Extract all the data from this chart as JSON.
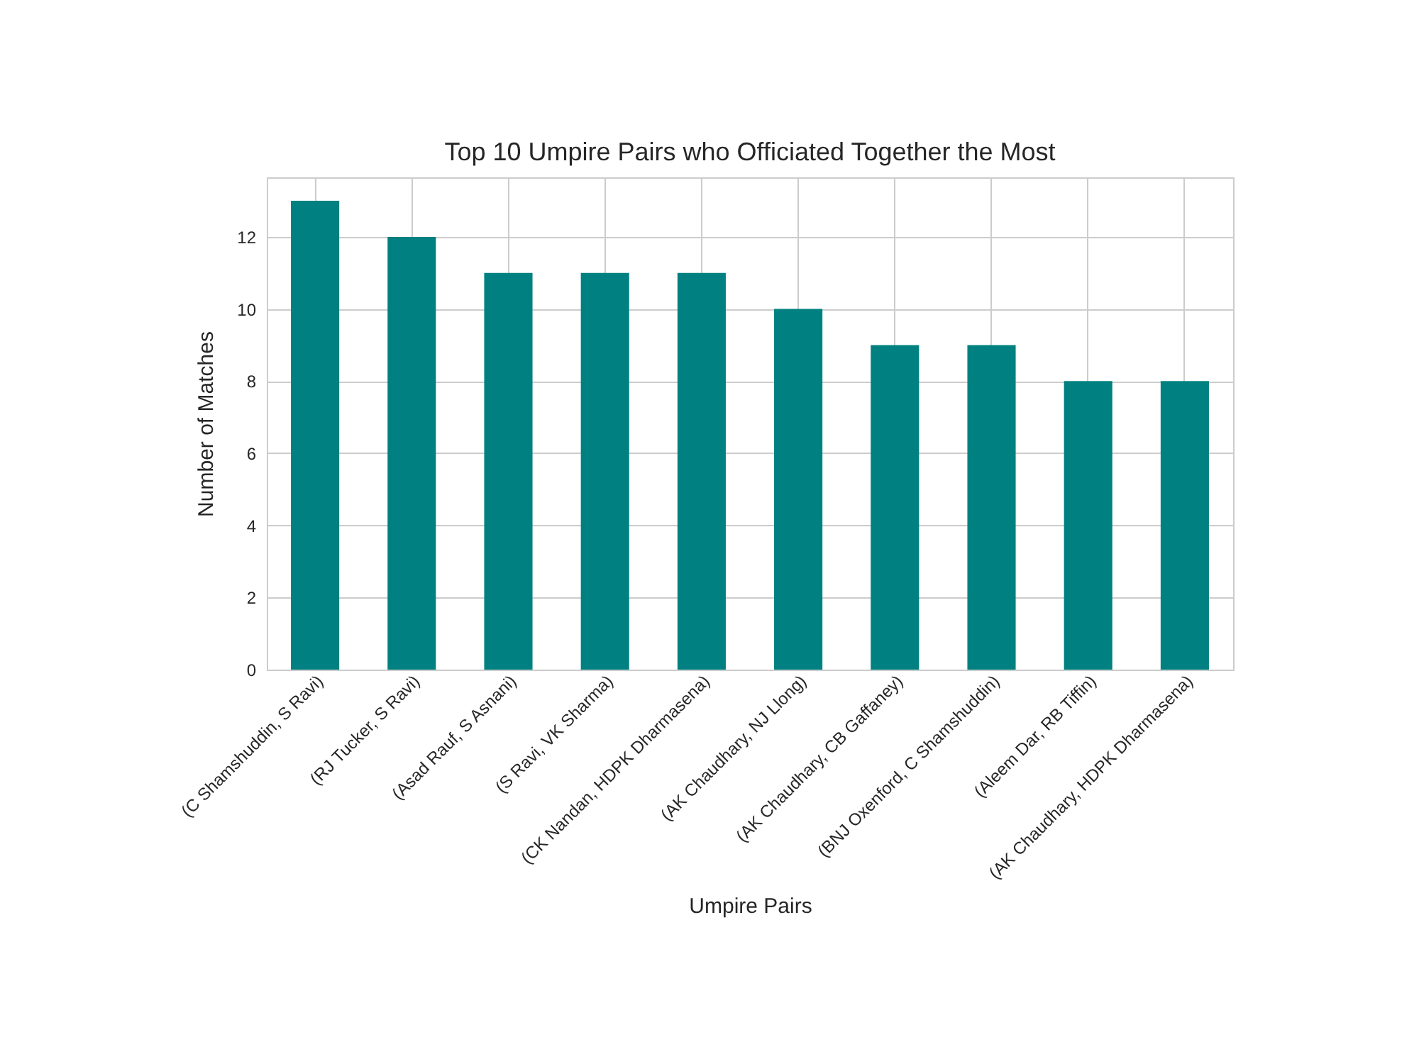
{
  "chart_data": {
    "type": "bar",
    "title": "Top 10 Umpire Pairs who Officiated Together the Most",
    "xlabel": "Umpire Pairs",
    "ylabel": "Number of Matches",
    "categories": [
      "(C Shamshuddin, S Ravi)",
      "(RJ Tucker, S Ravi)",
      "(Asad Rauf, S Asnani)",
      "(S Ravi, VK Sharma)",
      "(CK Nandan, HDPK Dharmasena)",
      "(AK Chaudhary, NJ Llong)",
      "(AK Chaudhary, CB Gaffaney)",
      "(BNJ Oxenford, C Shamshuddin)",
      "(Aleem Dar, RB Tiffin)",
      "(AK Chaudhary, HDPK Dharmasena)"
    ],
    "values": [
      13,
      12,
      11,
      11,
      11,
      10,
      9,
      9,
      8,
      8
    ],
    "color": "#008080",
    "ylim": [
      0,
      13.65
    ],
    "yticks": [
      0,
      2,
      4,
      6,
      8,
      10,
      12
    ],
    "grid": true
  }
}
